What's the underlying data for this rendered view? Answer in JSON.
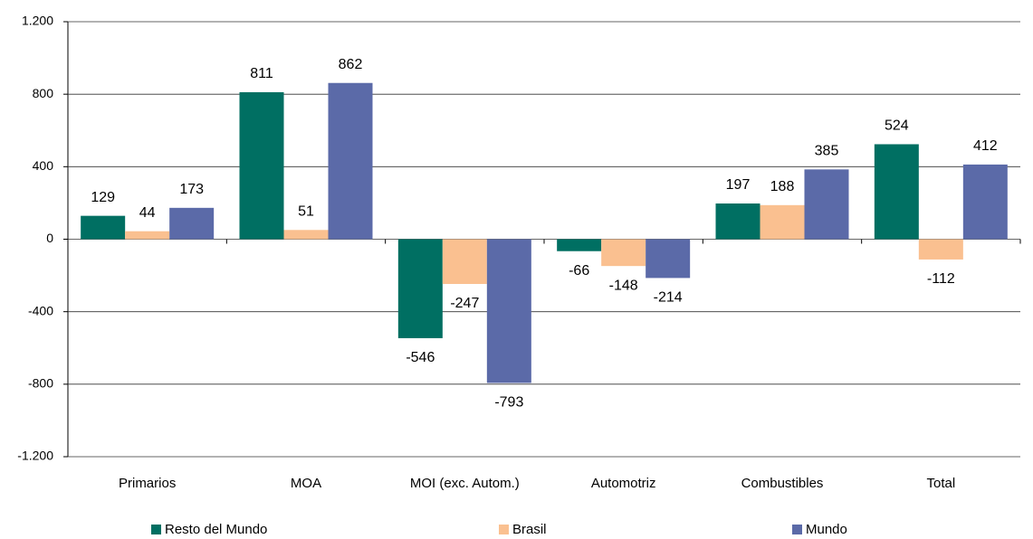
{
  "chart_data": {
    "type": "bar",
    "categories": [
      "Primarios",
      "MOA",
      "MOI (exc. Autom.)",
      "Automotriz",
      "Combustibles",
      "Total"
    ],
    "series": [
      {
        "name": "Resto del Mundo",
        "color": "#006f62",
        "values": [
          129,
          811,
          -546,
          -66,
          197,
          524
        ]
      },
      {
        "name": "Brasil",
        "color": "#fac090",
        "values": [
          44,
          51,
          -247,
          -148,
          188,
          -112
        ]
      },
      {
        "name": "Mundo",
        "color": "#5b6aa8",
        "values": [
          173,
          862,
          -793,
          -214,
          385,
          412
        ]
      }
    ],
    "ylim": [
      -1200,
      1200
    ],
    "yticks": [
      {
        "value": -1200,
        "label": "-1.200"
      },
      -800,
      -400,
      0,
      400,
      800,
      {
        "value": 1200,
        "label": "1.200"
      }
    ],
    "grid": true
  }
}
